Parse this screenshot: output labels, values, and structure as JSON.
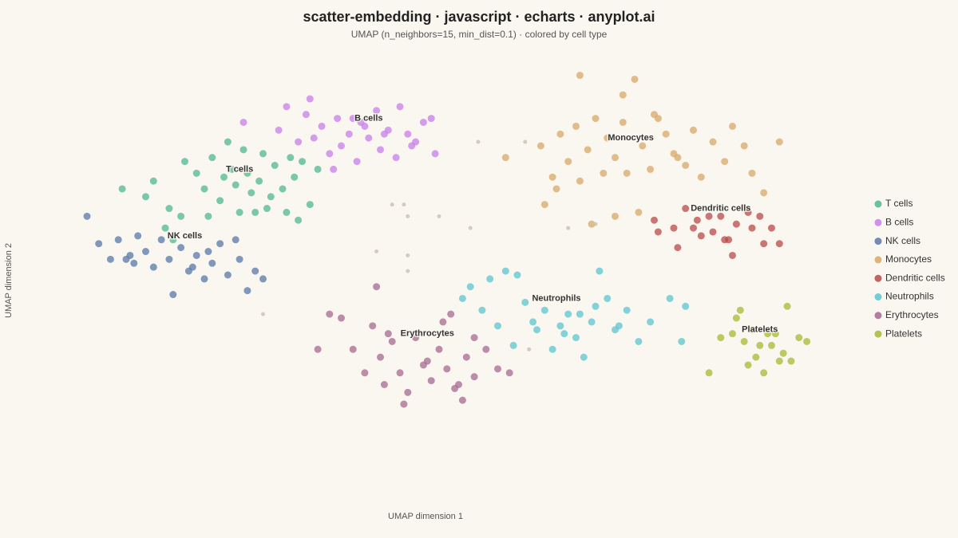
{
  "chart_data": {
    "type": "scatter",
    "title": "scatter-embedding · javascript · echarts · anyplot.ai",
    "subtitle": "UMAP (n_neighbors=15, min_dist=0.1) · colored by cell type",
    "x_label": "UMAP dimension 1",
    "y_label": "UMAP dimension 2",
    "xlim": [
      -10,
      10
    ],
    "ylim": [
      -5.6,
      5.6
    ],
    "legend": "right",
    "series": [
      {
        "name": "T cells",
        "color": "#4fb88f",
        "x": [
          -8.1,
          -7.5,
          -7.3,
          -6.9,
          -6.6,
          -6.5,
          -6.2,
          -6.0,
          -5.8,
          -5.6,
          -5.5,
          -5.3,
          -5.1,
          -5.0,
          -4.8,
          -4.6,
          -4.5,
          -4.4,
          -4.2,
          -4.0,
          -3.9,
          -3.7,
          -3.6,
          -3.5,
          -3.3,
          -3.1,
          -6.8,
          -5.9,
          -5.4,
          -4.7,
          -4.3,
          -3.8,
          -7.0,
          -5.2,
          -4.9
        ],
        "values": [
          2.2,
          2.0,
          2.4,
          1.7,
          1.5,
          2.9,
          2.6,
          2.2,
          3.0,
          1.9,
          2.5,
          2.7,
          1.6,
          3.2,
          2.1,
          2.4,
          3.1,
          1.7,
          2.8,
          2.2,
          1.6,
          2.5,
          1.4,
          2.9,
          1.8,
          2.7,
          0.9,
          1.5,
          3.4,
          1.6,
          2.0,
          3.0,
          1.2,
          2.3,
          2.6
        ]
      },
      {
        "name": "B cells",
        "color": "#c77dea",
        "x": [
          -5.0,
          -4.1,
          -3.9,
          -3.6,
          -3.4,
          -3.2,
          -3.0,
          -2.8,
          -2.6,
          -2.5,
          -2.3,
          -2.1,
          -2.0,
          -1.8,
          -1.6,
          -1.5,
          -1.3,
          -1.1,
          -1.0,
          -0.8,
          -0.6,
          -0.4,
          -0.2,
          -0.1,
          -2.7,
          -1.9,
          -1.4,
          -0.7,
          -3.3,
          -2.2
        ],
        "values": [
          3.9,
          3.7,
          4.3,
          3.4,
          4.1,
          3.5,
          3.8,
          3.1,
          4.0,
          3.3,
          3.6,
          2.9,
          3.9,
          3.5,
          4.2,
          3.2,
          3.7,
          3.0,
          4.3,
          3.6,
          3.4,
          3.9,
          4.0,
          3.1,
          2.7,
          3.8,
          3.6,
          3.3,
          4.5,
          4.0
        ]
      },
      {
        "name": "NK cells",
        "color": "#5a78aa",
        "x": [
          -9.0,
          -8.7,
          -8.4,
          -8.2,
          -7.9,
          -7.7,
          -7.5,
          -7.3,
          -7.1,
          -6.9,
          -6.6,
          -6.4,
          -6.2,
          -6.0,
          -5.8,
          -5.6,
          -5.4,
          -5.1,
          -4.9,
          -4.7,
          -4.5,
          -7.8,
          -6.8,
          -5.9,
          -5.2,
          -8.0,
          -6.3
        ],
        "values": [
          1.5,
          0.8,
          0.4,
          0.9,
          0.5,
          1.0,
          0.6,
          0.2,
          0.9,
          0.4,
          0.7,
          0.1,
          0.5,
          -0.1,
          0.3,
          0.8,
          0.0,
          0.4,
          -0.4,
          0.1,
          -0.1,
          0.3,
          -0.5,
          0.6,
          0.9,
          0.4,
          0.2
        ]
      },
      {
        "name": "Monocytes",
        "color": "#d8a86a",
        "x": [
          1.7,
          2.6,
          2.9,
          3.1,
          3.3,
          3.5,
          3.6,
          3.8,
          4.0,
          4.2,
          4.3,
          4.5,
          4.7,
          4.8,
          5.0,
          5.2,
          5.4,
          5.6,
          5.8,
          6.0,
          6.3,
          6.5,
          6.7,
          7.0,
          7.3,
          7.5,
          7.8,
          8.0,
          8.3,
          8.7,
          3.6,
          4.5,
          5.1,
          2.7,
          3.9,
          4.7,
          5.5,
          6.1,
          3.0
        ],
        "values": [
          3.0,
          3.3,
          2.5,
          3.6,
          2.9,
          3.8,
          2.4,
          3.2,
          4.0,
          2.6,
          3.5,
          3.0,
          3.9,
          2.6,
          5.0,
          3.3,
          2.7,
          4.0,
          3.6,
          3.1,
          2.8,
          3.7,
          2.5,
          3.4,
          2.9,
          3.8,
          3.3,
          2.6,
          2.1,
          3.4,
          5.1,
          1.5,
          1.6,
          1.8,
          1.3,
          4.6,
          4.1,
          3.0,
          2.2
        ]
      },
      {
        "name": "Dendritic cells",
        "color": "#b84a4a",
        "x": [
          5.5,
          5.6,
          6.0,
          6.3,
          6.5,
          6.7,
          6.9,
          7.0,
          7.2,
          7.4,
          7.6,
          7.8,
          8.0,
          8.2,
          8.5,
          8.7,
          6.1,
          6.6,
          7.3,
          7.9,
          8.3,
          7.5
        ],
        "values": [
          1.4,
          1.1,
          1.2,
          1.7,
          1.2,
          1.0,
          1.5,
          1.1,
          1.5,
          0.9,
          1.3,
          1.7,
          1.2,
          1.5,
          1.2,
          0.8,
          0.7,
          1.4,
          0.9,
          1.6,
          0.8,
          0.5
        ]
      },
      {
        "name": "Neutrophils",
        "color": "#5bc5d0",
        "x": [
          0.6,
          0.8,
          1.1,
          1.5,
          1.7,
          1.9,
          2.2,
          2.5,
          2.7,
          2.9,
          3.1,
          3.3,
          3.5,
          3.7,
          3.9,
          4.1,
          4.3,
          4.5,
          4.8,
          5.1,
          5.4,
          5.9,
          6.2,
          6.3,
          1.3,
          2.4,
          3.2,
          3.6,
          4.0,
          4.6,
          2.0
        ],
        "values": [
          -0.6,
          -0.3,
          -0.9,
          -1.3,
          0.1,
          -1.8,
          -0.7,
          -1.4,
          -0.9,
          -1.9,
          -1.3,
          -1.0,
          -1.6,
          -2.1,
          -1.2,
          0.1,
          -0.6,
          -1.4,
          -0.9,
          -1.7,
          -1.2,
          -0.6,
          -1.7,
          -0.8,
          -0.1,
          -1.2,
          -1.5,
          -1.0,
          -0.8,
          -1.3,
          0.0
        ]
      },
      {
        "name": "Erythrocytes",
        "color": "#a66a92",
        "x": [
          -3.1,
          -2.5,
          -2.2,
          -1.9,
          -1.7,
          -1.5,
          -1.4,
          -1.2,
          -1.0,
          -0.8,
          -0.6,
          -0.4,
          -0.2,
          0.0,
          0.2,
          0.3,
          0.5,
          0.7,
          0.9,
          1.2,
          1.5,
          1.8,
          -1.6,
          -0.9,
          0.1,
          0.6,
          -1.3,
          -0.3,
          0.4,
          -2.8,
          0.9
        ],
        "values": [
          -1.9,
          -1.1,
          -1.9,
          -2.5,
          -1.3,
          -2.1,
          -2.8,
          -1.7,
          -2.5,
          -3.0,
          -1.6,
          -2.3,
          -2.7,
          -1.9,
          -2.4,
          -1.0,
          -2.8,
          -2.1,
          -2.6,
          -1.9,
          -2.4,
          -2.5,
          -0.3,
          -3.3,
          -1.2,
          -3.2,
          -1.5,
          -2.2,
          -2.9,
          -1.0,
          -1.6
        ]
      },
      {
        "name": "Platelets",
        "color": "#a7b933",
        "x": [
          6.9,
          7.2,
          7.5,
          7.6,
          7.8,
          7.9,
          8.0,
          8.2,
          8.3,
          8.5,
          8.6,
          8.8,
          8.9,
          9.0,
          9.2,
          9.4,
          7.7,
          8.1,
          8.4,
          8.7
        ],
        "values": [
          -2.5,
          -1.6,
          -1.5,
          -1.1,
          -1.7,
          -2.3,
          -1.4,
          -1.8,
          -2.5,
          -1.8,
          -1.5,
          -2.0,
          -0.8,
          -2.2,
          -1.6,
          -1.7,
          -0.9,
          -2.1,
          -1.5,
          -2.2
        ]
      },
      {
        "color": "#c9c0b0",
        "x": [
          -1.2,
          -0.8,
          0.0,
          0.8,
          -1.6,
          -0.8,
          -0.8,
          -4.5,
          1.0,
          2.2,
          3.3,
          4.0,
          -0.9,
          2.3
        ],
        "values": [
          1.8,
          1.5,
          1.5,
          1.2,
          0.6,
          0.5,
          0.1,
          -1.0,
          3.4,
          3.4,
          1.2,
          1.3,
          1.8,
          -1.9
        ]
      }
    ],
    "annotations": [
      {
        "text": "T cells",
        "x": -5.1,
        "y": 2.7
      },
      {
        "text": "B cells",
        "x": -1.8,
        "y": 4.0
      },
      {
        "text": "NK cells",
        "x": -6.5,
        "y": 1.0
      },
      {
        "text": "Monocytes",
        "x": 4.9,
        "y": 3.5
      },
      {
        "text": "Dendritic cells",
        "x": 7.2,
        "y": 1.7
      },
      {
        "text": "Neutrophils",
        "x": 3.0,
        "y": -0.6
      },
      {
        "text": "Erythrocytes",
        "x": -0.3,
        "y": -1.5
      },
      {
        "text": "Platelets",
        "x": 8.2,
        "y": -1.4
      }
    ]
  }
}
